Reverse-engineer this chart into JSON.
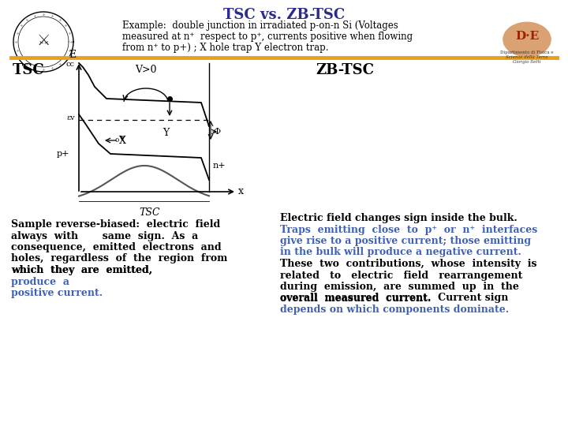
{
  "title": "TSC vs. ZB-TSC",
  "title_color": "#2b2b8c",
  "title_fontsize": 13,
  "subtitle_line1": "Example:  double junction in irradiated p-on-n Si (Voltages",
  "subtitle_line2": "measured at n⁺  respect to p⁺, currents positive when flowing",
  "subtitle_line3": "from n⁺ to p+) ; X hole trap Y electron trap.",
  "subtitle_fontsize": 8.5,
  "separator_color": "#e8a020",
  "bg_color": "#ffffff",
  "left_header": "TSC",
  "right_header": "ZB-TSC",
  "header_fontsize": 13,
  "header_color": "#000000",
  "tsc_italic": "TSC",
  "tsc_fontsize": 9,
  "tsc_color": "#000000",
  "tsc_highlight_color": "#4060b0",
  "zbtsc_fontsize": 9,
  "zbtsc_black_color": "#000000",
  "zbtsc_blue_color": "#4060b0",
  "diagram_band_color": "#000000",
  "field_curve_color": "#555555"
}
